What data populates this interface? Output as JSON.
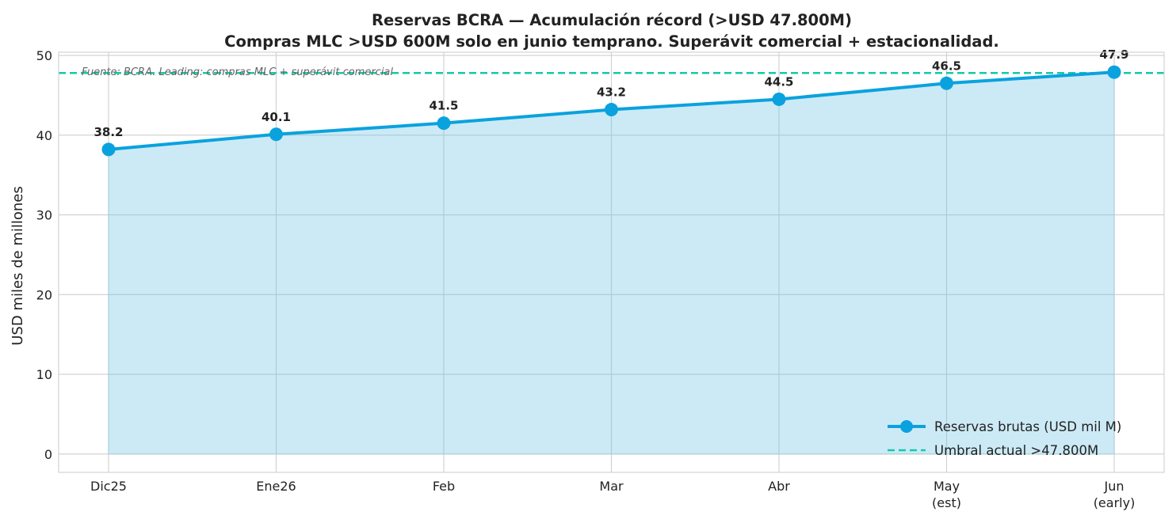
{
  "chart_data": {
    "type": "line",
    "title": "Reservas BCRA — Acumulación récord (>USD 47.800M)",
    "subtitle": "Compras MLC >USD 600M solo en junio temprano. Superávit comercial + estacionalidad.",
    "xlabel": "",
    "ylabel": "USD miles de millones",
    "categories": [
      "Dic25",
      "Ene26",
      "Feb",
      "Mar",
      "Abr",
      "May\n(est)",
      "Jun\n(early)"
    ],
    "series": [
      {
        "name": "Reservas brutas (USD mil M)",
        "values": [
          38.2,
          40.1,
          41.5,
          43.2,
          44.5,
          46.5,
          47.9
        ],
        "color": "#0aa2de",
        "fill": "#cceaf6",
        "markers": true,
        "area_fill": true
      }
    ],
    "reference_lines": [
      {
        "name": "Umbral actual >47.800M",
        "value": 47.8,
        "color": "#14c9aa",
        "style": "dashed"
      }
    ],
    "data_labels": [
      "38.2",
      "40.1",
      "41.5",
      "43.2",
      "44.5",
      "46.5",
      "47.9"
    ],
    "annotation": "Fuente: BCRA. Leading: compras MLC + superávit comercial",
    "ylim": [
      -2.3,
      50.4
    ],
    "yticks": [
      0,
      10,
      20,
      30,
      40,
      50
    ],
    "grid": true,
    "legend_position": "lower-right"
  }
}
